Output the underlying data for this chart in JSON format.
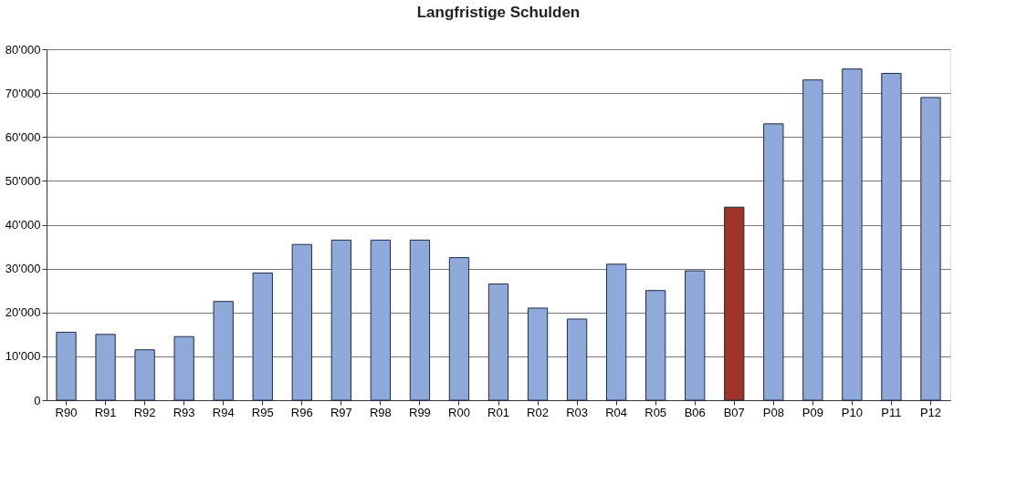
{
  "chart_data": {
    "type": "bar",
    "title": "Langfristige Schulden",
    "categories": [
      "R90",
      "R91",
      "R92",
      "R93",
      "R94",
      "R95",
      "R96",
      "R97",
      "R98",
      "R99",
      "R00",
      "R01",
      "R02",
      "R03",
      "R04",
      "R05",
      "B06",
      "B07",
      "P08",
      "P09",
      "P10",
      "P11",
      "P12"
    ],
    "values": [
      15500,
      15000,
      11500,
      14500,
      22500,
      29000,
      35500,
      36500,
      36500,
      36500,
      32500,
      26500,
      21000,
      18500,
      31000,
      25000,
      29500,
      44000,
      63000,
      73000,
      75500,
      74500,
      69000
    ],
    "colors": [
      "#8fa9db",
      "#8fa9db",
      "#8fa9db",
      "#8fa9db",
      "#8fa9db",
      "#8fa9db",
      "#8fa9db",
      "#8fa9db",
      "#8fa9db",
      "#8fa9db",
      "#8fa9db",
      "#8fa9db",
      "#8fa9db",
      "#8fa9db",
      "#8fa9db",
      "#8fa9db",
      "#8fa9db",
      "#9e3528",
      "#8fa9db",
      "#8fa9db",
      "#8fa9db",
      "#8fa9db",
      "#8fa9db"
    ],
    "ylim": [
      0,
      80000
    ],
    "yticks": [
      0,
      {
        "value": 10000,
        "label": "10'000"
      },
      {
        "value": 20000,
        "label": "20'000"
      },
      {
        "value": 30000,
        "label": "30'000"
      },
      {
        "value": 40000,
        "label": "40'000"
      },
      {
        "value": 50000,
        "label": "50'000"
      },
      {
        "value": 60000,
        "label": "60'000"
      },
      {
        "value": 70000,
        "label": "70'000"
      },
      {
        "value": 80000,
        "label": "80'000"
      }
    ],
    "grid": "y"
  }
}
